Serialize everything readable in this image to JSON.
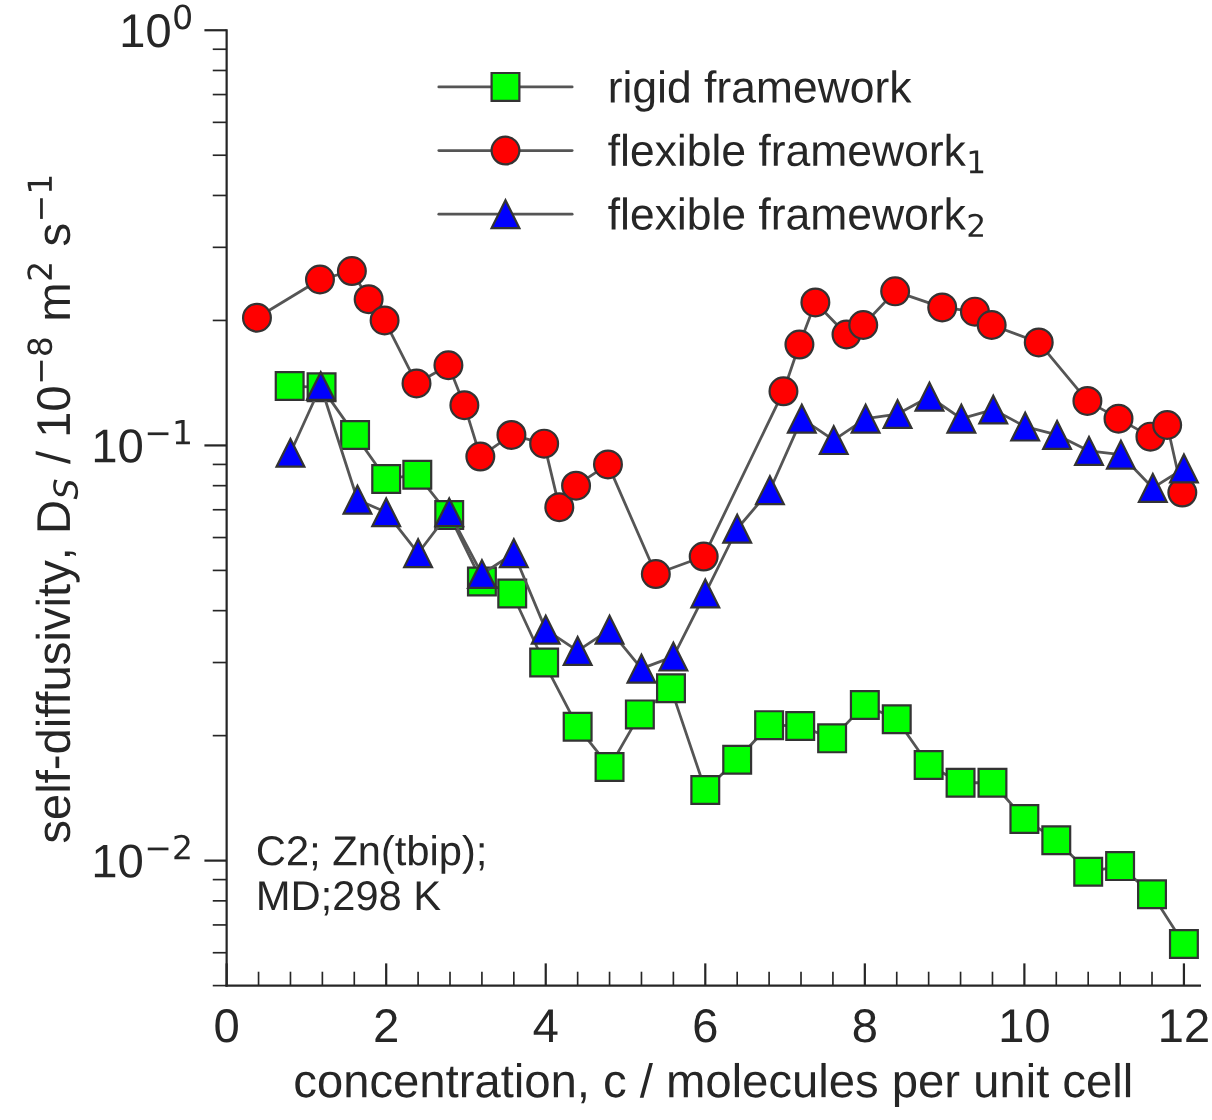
{
  "chart_data": {
    "type": "line",
    "xlabel": "concentration, c / molecules per unit cell",
    "ylabel": "self-diffusivity, D$_{S}$ / 10$^{−8}$ m$^{2}$ s$^{−1}$",
    "log": "y",
    "xlim": [
      0,
      12.2
    ],
    "xticks": [
      0,
      2,
      4,
      6,
      8,
      10,
      12
    ],
    "ylim": [
      0.005,
      1
    ],
    "yticks": [
      {
        "value": 0.01,
        "label": "10$^{−2}$"
      },
      {
        "value": 0.1,
        "label": "10$^{−1}$"
      },
      {
        "value": 1,
        "label": "10$^{0}$"
      }
    ],
    "grid": false,
    "legend": "top",
    "line_style": "solid",
    "annotations": [
      "C2; Zn(tbip);\nMD;298 K"
    ],
    "series": [
      {
        "name": "rigid framework",
        "color": "#00ff00",
        "marker": "square",
        "x": [
          0.79,
          1.19,
          1.61,
          2.0,
          2.39,
          2.79,
          3.2,
          3.58,
          3.98,
          4.4,
          4.8,
          5.18,
          5.57,
          6.0,
          6.4,
          6.8,
          7.19,
          7.59,
          8.0,
          8.4,
          8.8,
          9.2,
          9.6,
          10.0,
          10.4,
          10.8,
          11.2,
          11.6,
          12.0
        ],
        "values": [
          0.139,
          0.138,
          0.106,
          0.083,
          0.085,
          0.068,
          0.047,
          0.044,
          0.03,
          0.021,
          0.0168,
          0.0225,
          0.026,
          0.0148,
          0.0175,
          0.0212,
          0.0211,
          0.0197,
          0.0237,
          0.0219,
          0.017,
          0.0154,
          0.0154,
          0.0126,
          0.0112,
          0.0094,
          0.0097,
          0.0083,
          0.0063
        ]
      },
      {
        "name": "flexible framework$_{1}$",
        "color": "#ff0000",
        "marker": "circle",
        "x": [
          0.38,
          1.17,
          1.57,
          1.78,
          1.98,
          2.38,
          2.78,
          2.98,
          3.18,
          3.57,
          3.98,
          4.17,
          4.38,
          4.78,
          5.38,
          5.98,
          6.98,
          7.18,
          7.38,
          7.77,
          7.98,
          8.38,
          8.97,
          9.38,
          9.59,
          10.18,
          10.79,
          11.18,
          11.58,
          11.79,
          11.98
        ],
        "values": [
          0.203,
          0.251,
          0.263,
          0.225,
          0.2,
          0.141,
          0.156,
          0.125,
          0.094,
          0.106,
          0.101,
          0.071,
          0.08,
          0.09,
          0.049,
          0.054,
          0.135,
          0.175,
          0.221,
          0.185,
          0.195,
          0.235,
          0.215,
          0.21,
          0.195,
          0.177,
          0.128,
          0.116,
          0.105,
          0.112,
          0.077
        ]
      },
      {
        "name": "flexible framework$_{2}$",
        "color": "#0000ff",
        "marker": "triangle",
        "x": [
          0.8,
          1.18,
          1.64,
          2.0,
          2.4,
          2.79,
          3.2,
          3.6,
          4.0,
          4.4,
          4.8,
          5.2,
          5.6,
          6.0,
          6.4,
          6.81,
          7.21,
          7.61,
          8.01,
          8.41,
          8.81,
          9.21,
          9.61,
          10.01,
          10.41,
          10.81,
          11.21,
          11.61,
          12.0
        ],
        "values": [
          0.096,
          0.139,
          0.074,
          0.069,
          0.055,
          0.069,
          0.049,
          0.055,
          0.036,
          0.032,
          0.036,
          0.029,
          0.031,
          0.044,
          0.063,
          0.078,
          0.116,
          0.103,
          0.116,
          0.119,
          0.131,
          0.116,
          0.122,
          0.111,
          0.106,
          0.097,
          0.095,
          0.079,
          0.088
        ]
      }
    ]
  }
}
